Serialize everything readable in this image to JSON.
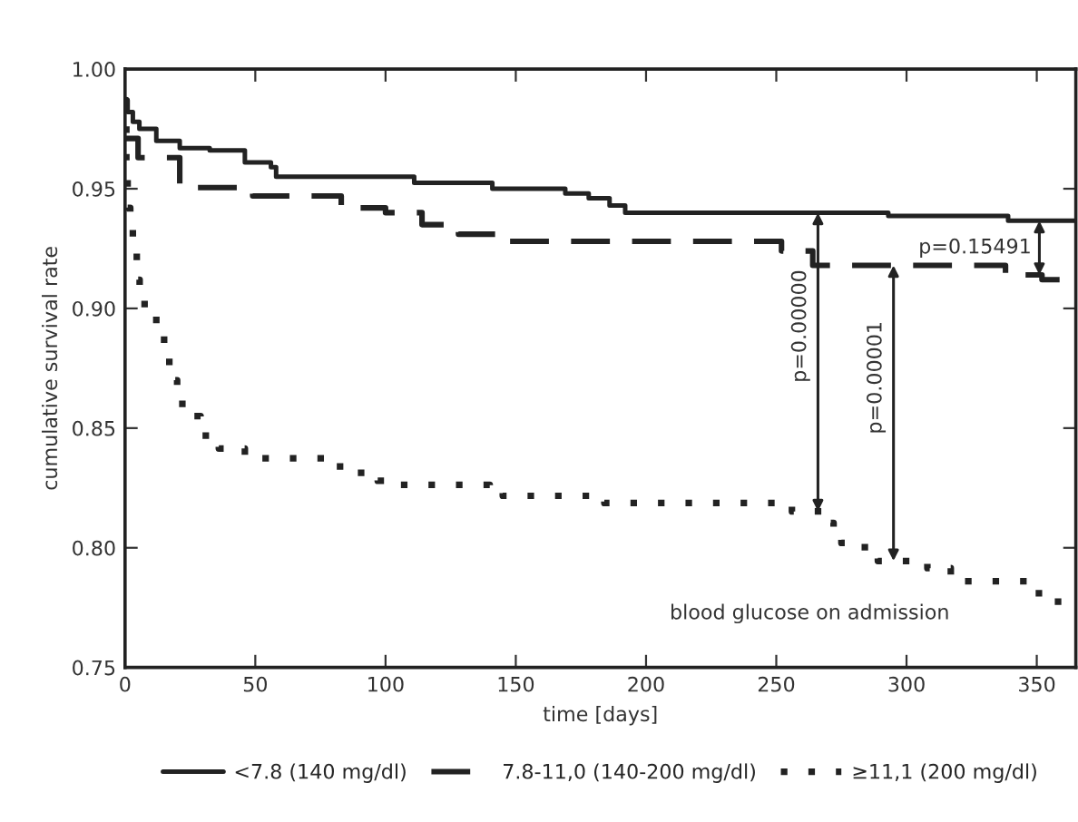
{
  "chart_data": {
    "type": "step",
    "xlabel": "time [days]",
    "ylabel": "cumulative survival rate",
    "xlim": [
      0,
      365
    ],
    "ylim": [
      0.75,
      1.0
    ],
    "xticks": [
      0,
      50,
      100,
      150,
      200,
      250,
      300,
      350
    ],
    "yticks": [
      {
        "value": 0.75,
        "label": "0.75"
      },
      {
        "value": 0.8,
        "label": "0.80"
      },
      {
        "value": 0.85,
        "label": "0.85"
      },
      {
        "value": 0.9,
        "label": "0.90"
      },
      {
        "value": 0.95,
        "label": "0.95"
      },
      {
        "value": 1.0,
        "label": "1.00"
      }
    ],
    "grid": false,
    "legend": "bottom",
    "series": [
      {
        "name": "<7.8 (140 mg/dl)",
        "color": "#222222",
        "line_style": "solid",
        "x": [
          0,
          1,
          3,
          5.5,
          12,
          21,
          32.5,
          46,
          56,
          58,
          111,
          141,
          169,
          178,
          186,
          192,
          293,
          339,
          365
        ],
        "values": [
          0.987,
          0.982,
          0.978,
          0.975,
          0.97,
          0.967,
          0.966,
          0.961,
          0.959,
          0.955,
          0.9525,
          0.95,
          0.948,
          0.946,
          0.943,
          0.94,
          0.9386,
          0.9366,
          0.9366
        ]
      },
      {
        "name": "7.8-11,0 (140-200 mg/dl)",
        "color": "#222222",
        "line_style": "dashed",
        "x": [
          0,
          5,
          21,
          49,
          83,
          100,
          114,
          128,
          146,
          252,
          264,
          338,
          352,
          365
        ],
        "values": [
          0.971,
          0.963,
          0.9505,
          0.947,
          0.942,
          0.94,
          0.935,
          0.931,
          0.928,
          0.924,
          0.918,
          0.914,
          0.912,
          0.912
        ]
      },
      {
        "name": "≥11,1 (200 mg/dl)",
        "color": "#222222",
        "line_style": "dotted",
        "x": [
          0,
          0.5,
          1,
          2,
          3,
          4.5,
          5.6,
          7.5,
          12,
          15,
          17,
          20,
          22,
          26,
          29,
          31,
          36,
          46,
          80,
          85,
          97,
          103,
          140,
          145,
          184,
          256,
          268,
          272,
          275,
          284,
          289,
          308,
          317,
          349,
          354,
          365
        ],
        "values": [
          0.987,
          0.959,
          0.942,
          0.938,
          0.924,
          0.912,
          0.9076,
          0.9,
          0.889,
          0.884,
          0.87,
          0.866,
          0.858,
          0.855,
          0.851,
          0.843,
          0.8415,
          0.8374,
          0.834,
          0.8313,
          0.828,
          0.8263,
          0.8237,
          0.8217,
          0.8187,
          0.8152,
          0.8104,
          0.807,
          0.802,
          0.798,
          0.7945,
          0.7915,
          0.786,
          0.781,
          0.7775,
          0.7775
        ]
      }
    ],
    "annotations": [
      {
        "text": "p=0.00000",
        "x": 266,
        "y": 0.94
      },
      {
        "text": "p=0.00001",
        "x": 295,
        "y": 0.918
      },
      {
        "text": "p=0.15491",
        "x": 351,
        "y": 0.9366
      },
      "blood glucose on admission"
    ]
  }
}
